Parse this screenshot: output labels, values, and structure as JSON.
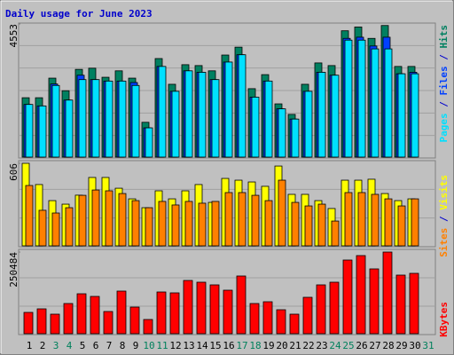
{
  "title": "Daily usage for June 2023",
  "legend_separator": "/",
  "highlight_categories": [
    3,
    4,
    10,
    11,
    17,
    18,
    24,
    25,
    31
  ],
  "highlight_color": "#00805c",
  "chart_data": [
    {
      "type": "bar",
      "ylim": [
        0,
        4553
      ],
      "yticks": [
        4553
      ],
      "series": [
        {
          "name": "Hits",
          "color": "#008060",
          "values": [
            2030,
            2030,
            2700,
            2270,
            3000,
            3040,
            2730,
            2950,
            2700,
            1190,
            3370,
            2490,
            3160,
            3130,
            2950,
            3490,
            3760,
            2340,
            2820,
            1820,
            1460,
            2490,
            3220,
            3130,
            4320,
            4450,
            4060,
            4500,
            3100,
            3100,
            null
          ]
        },
        {
          "name": "Files",
          "color": "#0040ff",
          "values": [
            1800,
            1750,
            2500,
            1950,
            2800,
            2650,
            2600,
            2600,
            2550,
            1000,
            3100,
            2250,
            2950,
            2900,
            2650,
            3250,
            3500,
            2050,
            2600,
            1650,
            1300,
            2250,
            2900,
            2800,
            4060,
            4100,
            3800,
            4100,
            2850,
            2900,
            null
          ]
        },
        {
          "name": "Pages",
          "color": "#00e0ff",
          "values": [
            1800,
            1750,
            2450,
            1950,
            2650,
            2650,
            2600,
            2600,
            2450,
            1000,
            3100,
            2250,
            2950,
            2900,
            2650,
            3250,
            3500,
            2050,
            2600,
            1650,
            1300,
            2250,
            2900,
            2800,
            4000,
            4000,
            3700,
            3700,
            2850,
            2850,
            null
          ]
        }
      ]
    },
    {
      "type": "bar",
      "ylim": [
        0,
        606
      ],
      "yticks": [
        606
      ],
      "series": [
        {
          "name": "Visits",
          "color": "#ffff00",
          "values": [
            606,
            450,
            332,
            306,
            372,
            502,
            502,
            423,
            345,
            280,
            404,
            345,
            404,
            450,
            319,
            495,
            482,
            469,
            437,
            586,
            378,
            378,
            332,
            274,
            482,
            482,
            489,
            384,
            332,
            345,
            null
          ]
        },
        {
          "name": "Sites",
          "color": "#ff8000",
          "values": [
            443,
            261,
            241,
            280,
            371,
            410,
            404,
            384,
            332,
            280,
            326,
            300,
            326,
            313,
            326,
            391,
            391,
            371,
            332,
            482,
            319,
            293,
            306,
            182,
            391,
            391,
            378,
            345,
            293,
            345,
            null
          ]
        }
      ]
    },
    {
      "type": "bar",
      "ylim": [
        0,
        250484
      ],
      "yticks": [
        250484
      ],
      "categories": [
        1,
        2,
        3,
        4,
        5,
        6,
        7,
        8,
        9,
        10,
        11,
        12,
        13,
        14,
        15,
        16,
        17,
        18,
        19,
        20,
        21,
        22,
        23,
        24,
        25,
        26,
        27,
        28,
        29,
        30,
        31
      ],
      "series": [
        {
          "name": "KBytes",
          "color": "#ff0000",
          "values": [
            65350,
            76240,
            59900,
            92580,
            122500,
            114370,
            68080,
            130700,
            81690,
            43570,
            127980,
            125260,
            163380,
            157940,
            149770,
            133430,
            177000,
            92580,
            98030,
            73520,
            59900,
            111640,
            149770,
            157940,
            226000,
            239620,
            198780,
            250484,
            179720,
            185160,
            null
          ]
        }
      ]
    }
  ]
}
